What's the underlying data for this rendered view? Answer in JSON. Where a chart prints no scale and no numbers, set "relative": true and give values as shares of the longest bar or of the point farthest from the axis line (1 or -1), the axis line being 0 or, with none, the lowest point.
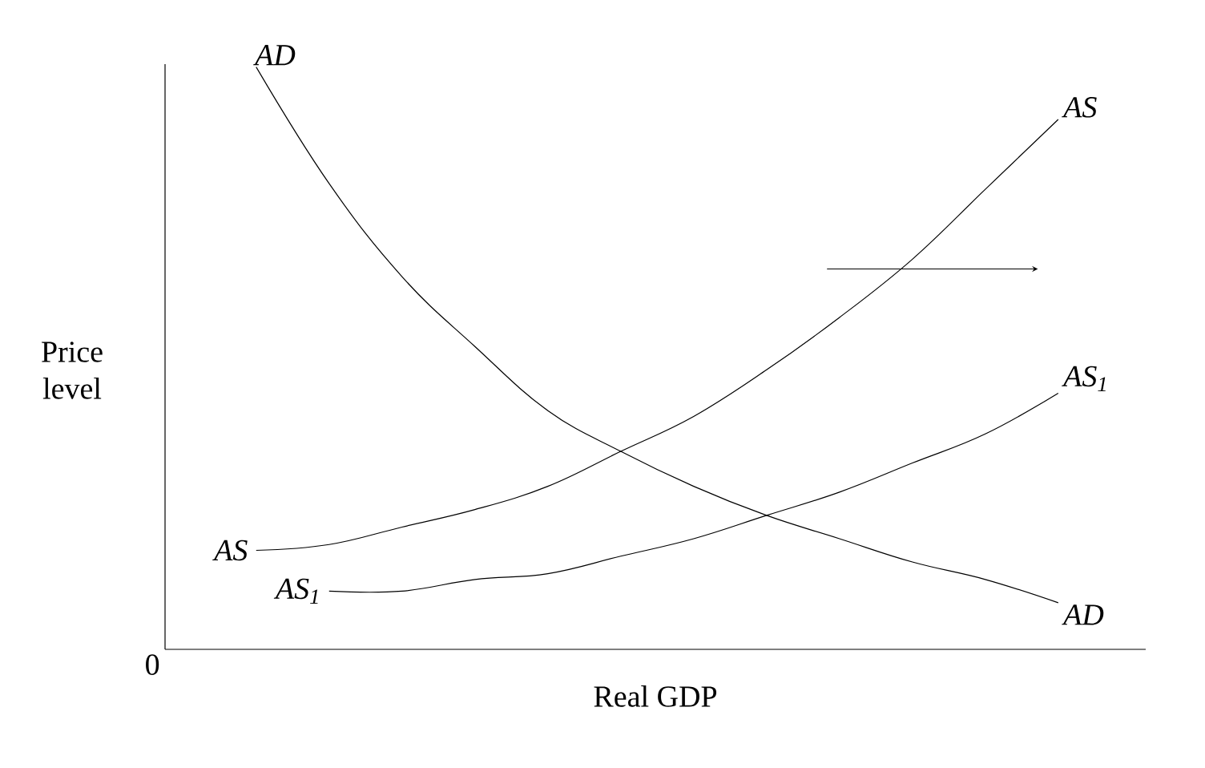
{
  "chart_data": {
    "type": "line",
    "relative": true,
    "xlabel": "Real GDP",
    "ylabel": "Price level",
    "categories": [
      null,
      null,
      null,
      null,
      null,
      null,
      null,
      null,
      null,
      null,
      null,
      null
    ],
    "series": [
      {
        "name": "AD",
        "color": "#000000",
        "values": [
          1.0,
          0.8,
          0.64,
          0.52,
          0.41,
          0.34,
          0.28,
          0.23,
          0.19,
          0.15,
          0.12,
          0.08
        ]
      },
      {
        "name": "AS",
        "color": "#000000",
        "values": [
          0.17,
          0.18,
          0.21,
          0.24,
          0.28,
          0.34,
          0.4,
          0.48,
          0.57,
          0.67,
          0.79,
          0.91
        ]
      },
      {
        "name": "AS$_{1}$",
        "color": "#000000",
        "values": [
          null,
          0.1,
          0.1,
          0.12,
          0.13,
          0.16,
          0.19,
          0.23,
          0.27,
          0.32,
          0.37,
          0.44
        ]
      }
    ],
    "annotations": [
      "0"
    ],
    "marker": "none",
    "line_style": "solid"
  }
}
